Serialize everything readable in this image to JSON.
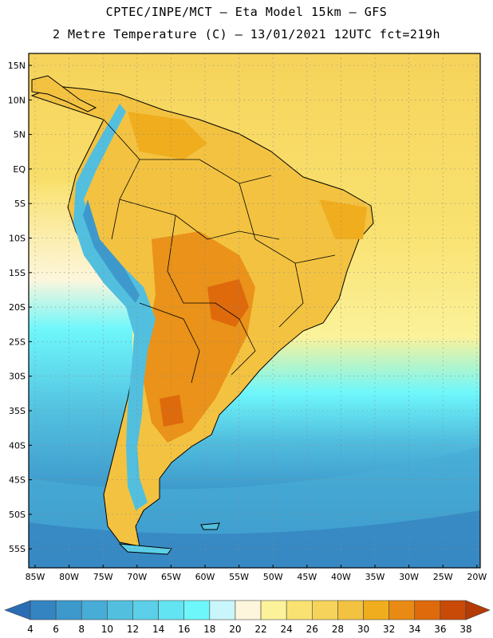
{
  "header": {
    "line1": "CPTEC/INPE/MCT –  Eta Model 15km – GFS",
    "line2": "2 Metre Temperature (C) – 13/01/2021 12UTC fct=219h"
  },
  "map": {
    "lat_labels": [
      "15N",
      "10N",
      "5N",
      "EQ",
      "5S",
      "10S",
      "15S",
      "20S",
      "25S",
      "30S",
      "35S",
      "40S",
      "45S",
      "50S",
      "55S"
    ],
    "lon_labels": [
      "85W",
      "80W",
      "75W",
      "70W",
      "65W",
      "60W",
      "55W",
      "50W",
      "45W",
      "40W",
      "35W",
      "30W",
      "25W",
      "20W"
    ]
  },
  "colorbar": {
    "labels": [
      "4",
      "6",
      "8",
      "10",
      "12",
      "14",
      "16",
      "18",
      "20",
      "22",
      "24",
      "26",
      "28",
      "30",
      "32",
      "34",
      "36",
      "38"
    ],
    "colors": [
      "#2a6db5",
      "#3484c1",
      "#3d99cc",
      "#47acd6",
      "#52bfdf",
      "#5bd0e8",
      "#63e4f2",
      "#6ef7fb",
      "#c9f6fb",
      "#fdf6dc",
      "#fbf29a",
      "#f9e271",
      "#f6d35a",
      "#f3c241",
      "#f0ad1e",
      "#e88a13",
      "#de6a0c",
      "#c84a06",
      "#b43b05"
    ]
  }
}
